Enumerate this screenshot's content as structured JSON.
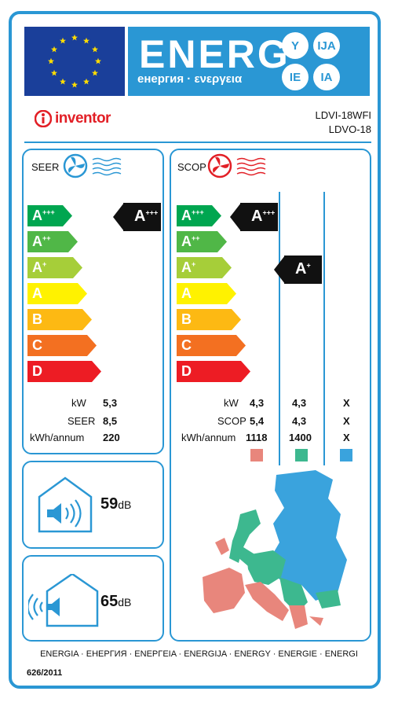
{
  "header": {
    "energy_word": "ENERG",
    "energy_subtitle": "енергия · ενεργεια",
    "lang_codes": [
      "Y",
      "IJA",
      "IE",
      "IA"
    ]
  },
  "brand": {
    "name": "inventor"
  },
  "model": {
    "indoor": "LDVI-18WFI",
    "outdoor": "LDVO-18"
  },
  "seer_panel": {
    "title": "SEER",
    "scale": [
      "A+++",
      "A++",
      "A+",
      "A",
      "B",
      "C",
      "D"
    ],
    "rating": "A+++",
    "rows": [
      {
        "label": "kW",
        "value": "5,3"
      },
      {
        "label": "SEER",
        "value": "8,5"
      },
      {
        "label": "kWh/annum",
        "value": "220"
      }
    ]
  },
  "scop_panel": {
    "title": "SCOP",
    "scale": [
      "A+++",
      "A++",
      "A+",
      "A",
      "B",
      "C",
      "D"
    ],
    "rating_warmer": "A+++",
    "rating_average": "A+",
    "rows": [
      {
        "label": "kW",
        "values": [
          "4,3",
          "4,3",
          "X"
        ]
      },
      {
        "label": "SCOP",
        "values": [
          "5,4",
          "4,3",
          "X"
        ]
      },
      {
        "label": "kWh/annum",
        "values": [
          "1118",
          "1400",
          "X"
        ]
      }
    ],
    "zone_colors": [
      "#e8867c",
      "#3db88f",
      "#3aa3dd"
    ]
  },
  "noise": {
    "indoor": {
      "value": "59",
      "unit": "dB"
    },
    "outdoor": {
      "value": "65",
      "unit": "dB"
    }
  },
  "colors": {
    "border": "#2a97d4",
    "eu_blue": "#1a3f9a",
    "star": "#ffdd00",
    "brand_red": "#e21f26",
    "scale": [
      "#00a650",
      "#50b747",
      "#a6ce39",
      "#fff200",
      "#fdb913",
      "#f37021",
      "#ed1c24"
    ]
  },
  "footer": {
    "languages": "ENERGIA · ЕНЕРГИЯ · ΕΝΕΡΓΕΙΑ · ENERGIJA · ENERGY · ENERGIE · ENERGI",
    "regulation": "626/2011"
  }
}
